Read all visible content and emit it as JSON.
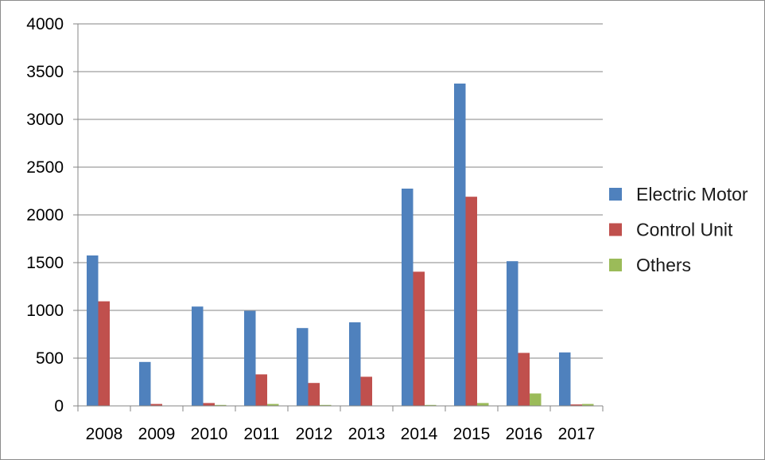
{
  "chart_data": {
    "type": "bar",
    "title": "",
    "xlabel": "",
    "ylabel": "",
    "categories": [
      "2008",
      "2009",
      "2010",
      "2011",
      "2012",
      "2013",
      "2014",
      "2015",
      "2016",
      "2017"
    ],
    "series": [
      {
        "name": "Electric Motor",
        "color": "#4f81bd",
        "values": [
          1575,
          460,
          1040,
          995,
          815,
          875,
          2275,
          3375,
          1515,
          560
        ]
      },
      {
        "name": "Control Unit",
        "color": "#c0504d",
        "values": [
          1095,
          20,
          30,
          330,
          240,
          305,
          1405,
          2190,
          555,
          15
        ]
      },
      {
        "name": "Others",
        "color": "#9bbb59",
        "values": [
          0,
          0,
          10,
          20,
          10,
          0,
          10,
          30,
          130,
          20
        ]
      }
    ],
    "yticks": [
      "0",
      "500",
      "1000",
      "1500",
      "2000",
      "2500",
      "3000",
      "3500",
      "4000"
    ],
    "ylim": [
      0,
      4000
    ],
    "grid": true,
    "legend_position": "right"
  }
}
